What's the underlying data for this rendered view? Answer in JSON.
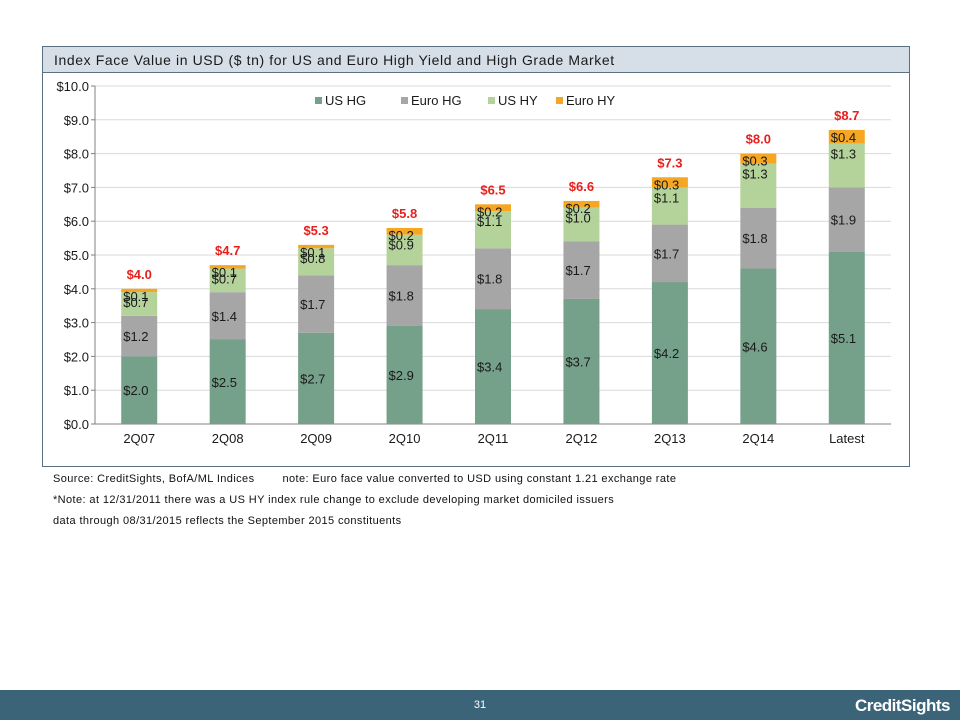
{
  "title": "Index Face Value in USD ($ tn) for US and Euro High Yield and High Grade Market",
  "colors": {
    "us_hg": "#75a08a",
    "euro_hg": "#a6a6a6",
    "us_hy": "#b4d39a",
    "euro_hy": "#f5a623",
    "total_label": "#e8201c",
    "title_bar": "#d6dfe8",
    "footer": "#3c6478"
  },
  "chart_data": {
    "type": "bar",
    "stacked": true,
    "categories": [
      "2Q07",
      "2Q08",
      "2Q09",
      "2Q10",
      "2Q11",
      "2Q12",
      "2Q13",
      "2Q14",
      "Latest"
    ],
    "series": [
      {
        "name": "US HG",
        "values": [
          2.0,
          2.5,
          2.7,
          2.9,
          3.4,
          3.7,
          4.2,
          4.6,
          5.1
        ],
        "labels": [
          "$2.0",
          "$2.5",
          "$2.7",
          "$2.9",
          "$3.4",
          "$3.7",
          "$4.2",
          "$4.6",
          "$5.1"
        ]
      },
      {
        "name": "Euro HG",
        "values": [
          1.2,
          1.4,
          1.7,
          1.8,
          1.8,
          1.7,
          1.7,
          1.8,
          1.9
        ],
        "labels": [
          "$1.2",
          "$1.4",
          "$1.7",
          "$1.8",
          "$1.8",
          "$1.7",
          "$1.7",
          "$1.8",
          "$1.9"
        ]
      },
      {
        "name": "US HY",
        "values": [
          0.7,
          0.7,
          0.8,
          0.9,
          1.1,
          1.0,
          1.1,
          1.3,
          1.3
        ],
        "labels": [
          "$0.7",
          "$0.7",
          "$0.8",
          "$0.9",
          "$1.1",
          "$1.0",
          "$1.1",
          "$1.3",
          "$1.3"
        ]
      },
      {
        "name": "Euro HY",
        "values": [
          0.1,
          0.1,
          0.1,
          0.2,
          0.2,
          0.2,
          0.3,
          0.3,
          0.4
        ],
        "labels": [
          "$0.1",
          "$0.1",
          "$0.1",
          "$0.2",
          "$0.2",
          "$0.2",
          "$0.3",
          "$0.3",
          "$0.4"
        ]
      }
    ],
    "totals": [
      4.0,
      4.7,
      5.3,
      5.8,
      6.5,
      6.6,
      7.3,
      8.0,
      8.7
    ],
    "total_labels": [
      "$4.0",
      "$4.7",
      "$5.3",
      "$5.8",
      "$6.5",
      "$6.6",
      "$7.3",
      "$8.0",
      "$8.7"
    ],
    "ylim": [
      0,
      10
    ],
    "yticks": [
      0,
      1,
      2,
      3,
      4,
      5,
      6,
      7,
      8,
      9,
      10
    ],
    "ytick_labels": [
      "$0.0",
      "$1.0",
      "$2.0",
      "$3.0",
      "$4.0",
      "$5.0",
      "$6.0",
      "$7.0",
      "$8.0",
      "$9.0",
      "$10.0"
    ],
    "grid": true,
    "legend": "top-center"
  },
  "notes": {
    "source": "Source: CreditSights, BofA/ML Indices",
    "fx_note": "note: Euro face value converted to USD using constant 1.21 exchange rate",
    "rule_change": "*Note: at 12/31/2011 there was a US HY index rule change to exclude developing market domiciled issuers",
    "data_through": "data through 08/31/2015 reflects the September 2015 constituents"
  },
  "footer": {
    "page_number": "31",
    "brand": "CreditSights"
  }
}
